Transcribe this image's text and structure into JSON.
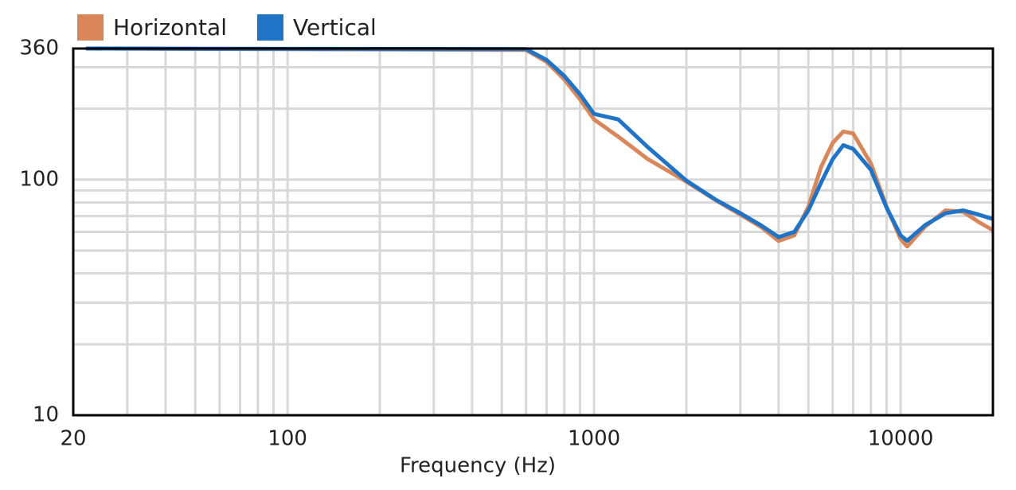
{
  "chart_data": {
    "type": "line",
    "log_x": true,
    "log_y": true,
    "grid": true,
    "xlabel": "Frequency (Hz)",
    "x": [
      22,
      600,
      700,
      800,
      900,
      1000,
      1200,
      1500,
      2000,
      2500,
      3000,
      3500,
      4000,
      4500,
      5000,
      5500,
      6000,
      6500,
      7000,
      8000,
      9000,
      10000,
      10500,
      12000,
      14000,
      16000,
      18000,
      20000
    ],
    "series": [
      {
        "name": "Horizontal",
        "color": "#d9875a",
        "values": [
          360,
          355,
          316,
          266,
          219,
          180,
          152,
          122,
          98,
          81.6,
          71,
          63,
          54.9,
          58,
          76.7,
          113,
          143,
          160,
          157,
          117,
          76.7,
          56,
          52,
          63,
          74,
          73,
          66,
          61
        ]
      },
      {
        "name": "Vertical",
        "color": "#1f74c8",
        "values": [
          360,
          358,
          322,
          275,
          230,
          190,
          180,
          137,
          99,
          82,
          72,
          64,
          57,
          60,
          74,
          97,
          122,
          140,
          135,
          110,
          76,
          58,
          55,
          64,
          72,
          74,
          71,
          68
        ]
      }
    ],
    "xlim": [
      20,
      20000
    ],
    "ylim": [
      10,
      360
    ],
    "xticks": [
      20,
      100,
      1000,
      10000
    ],
    "yticks": [
      10,
      100,
      360
    ],
    "xgrid": [
      30,
      40,
      50,
      60,
      70,
      80,
      90,
      100,
      200,
      300,
      400,
      500,
      600,
      700,
      800,
      900,
      1000,
      2000,
      3000,
      4000,
      5000,
      6000,
      7000,
      8000,
      9000,
      10000
    ],
    "ygrid": [
      20,
      30,
      40,
      50,
      60,
      70,
      80,
      90,
      100,
      200,
      300
    ]
  }
}
